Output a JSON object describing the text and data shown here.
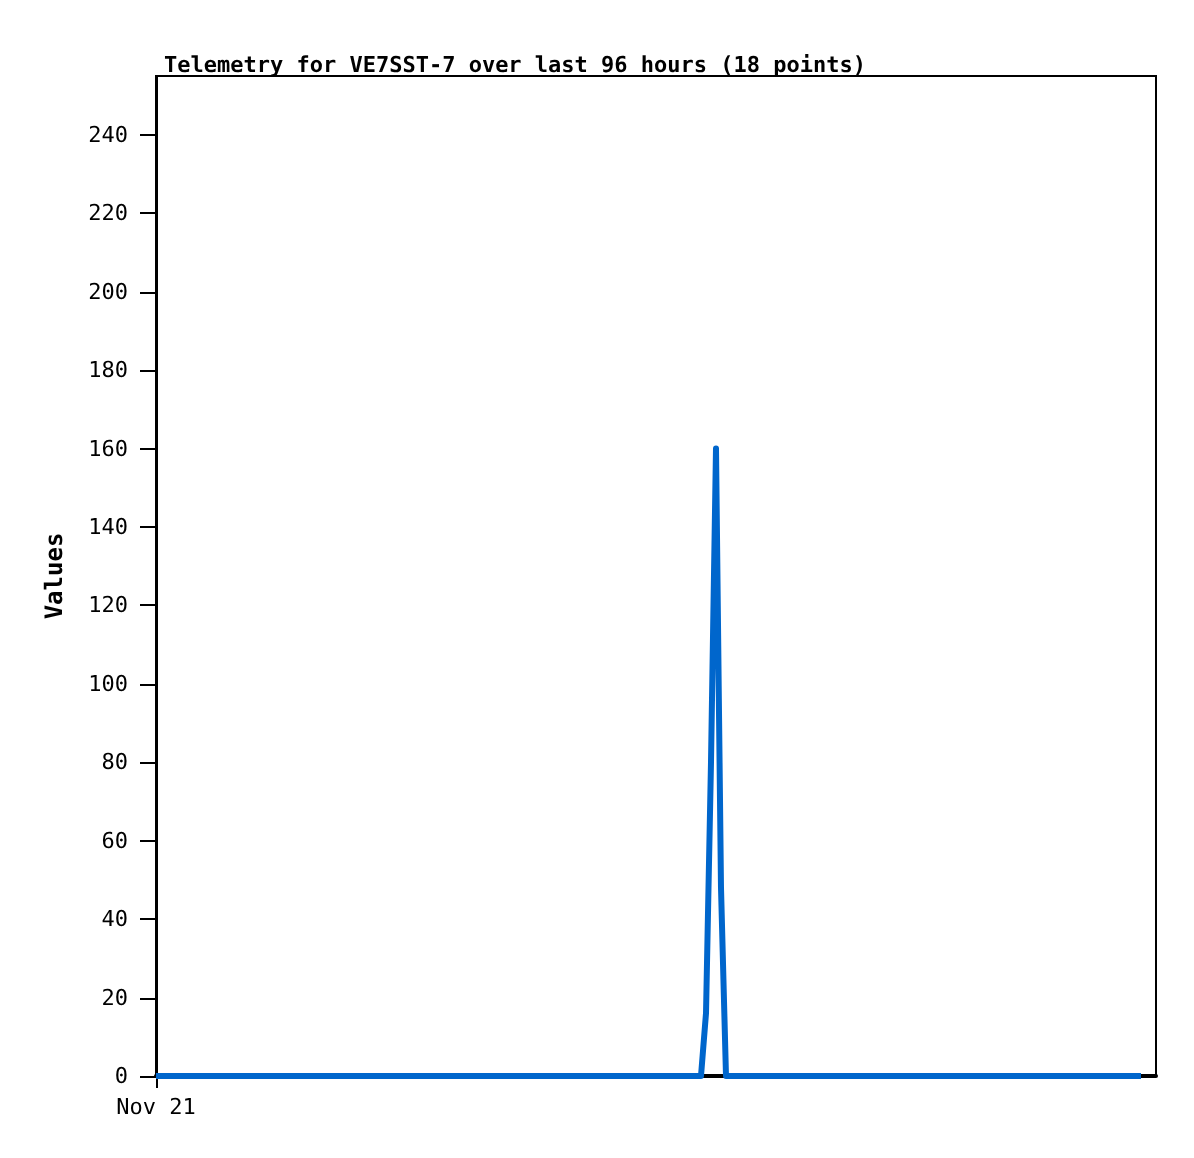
{
  "chart_data": {
    "type": "line",
    "title": "Telemetry for VE7SST-7 over last 96 hours (18 points)",
    "ylabel": "Values",
    "categories": [
      "Nov 21",
      null,
      null,
      null,
      null,
      null,
      null,
      null,
      null,
      null,
      null,
      null,
      null,
      null,
      null,
      null,
      null,
      null,
      null,
      null,
      null,
      null,
      null,
      null,
      null,
      null,
      null,
      null,
      null,
      null,
      null,
      null,
      null,
      null,
      null,
      null,
      null,
      null,
      null,
      null,
      null,
      null,
      null,
      null,
      null,
      null,
      null,
      null,
      null,
      null,
      null,
      null,
      null,
      null,
      null,
      null,
      null,
      null,
      null,
      null,
      null,
      null,
      null,
      null,
      null,
      null,
      null,
      null,
      null,
      null,
      null,
      null,
      null,
      null,
      null,
      null,
      null,
      null,
      null,
      null,
      null,
      null,
      null,
      null,
      null,
      null,
      null,
      null,
      null,
      null,
      null,
      null,
      null,
      null,
      null,
      null,
      null,
      null,
      null,
      null,
      null,
      null,
      null,
      null,
      null,
      null,
      null,
      null,
      null,
      null,
      null,
      null,
      null,
      null,
      null,
      null,
      null,
      null,
      null,
      null,
      null,
      null,
      null,
      null,
      null,
      null,
      null,
      null,
      null,
      null,
      null,
      null,
      null,
      null,
      null,
      null,
      null,
      null,
      null,
      null,
      null,
      null,
      null,
      null,
      null,
      null,
      null,
      null,
      null,
      null,
      null,
      null,
      null,
      null,
      null,
      null,
      null,
      null,
      null,
      null,
      null,
      null,
      null,
      null,
      null,
      null,
      null,
      null,
      null,
      null,
      null,
      null,
      null,
      null,
      null,
      null,
      null,
      null,
      null,
      null,
      null,
      null,
      null,
      null,
      null,
      null,
      null,
      null,
      null,
      null,
      null,
      null,
      null,
      null,
      null,
      null,
      null,
      null,
      null,
      null,
      null
    ],
    "ylim": [
      0,
      255
    ],
    "yticks": [
      0,
      20,
      40,
      60,
      80,
      100,
      120,
      140,
      160,
      180,
      200,
      220,
      240
    ],
    "grid": false,
    "marker": "none",
    "line_style": "solid",
    "series": [
      {
        "color": "#0066cc",
        "values": [
          0,
          0,
          0,
          0,
          0,
          0,
          0,
          0,
          0,
          0,
          0,
          0,
          0,
          0,
          0,
          0,
          0,
          0,
          0,
          0,
          0,
          0,
          0,
          0,
          0,
          0,
          0,
          0,
          0,
          0,
          0,
          0,
          0,
          0,
          0,
          0,
          0,
          0,
          0,
          0,
          0,
          0,
          0,
          0,
          0,
          0,
          0,
          0,
          0,
          0,
          0,
          0,
          0,
          0,
          0,
          0,
          0,
          0,
          0,
          0,
          0,
          0,
          0,
          0,
          0,
          0,
          0,
          0,
          0,
          0,
          0,
          0,
          0,
          0,
          0,
          0,
          0,
          0,
          0,
          0,
          0,
          0,
          0,
          0,
          0,
          0,
          0,
          0,
          0,
          0,
          0,
          0,
          0,
          0,
          0,
          0,
          0,
          0,
          0,
          0,
          0,
          0,
          0,
          0,
          0,
          0,
          0,
          0,
          0,
          0,
          16,
          80,
          160,
          48,
          0,
          0,
          0,
          0,
          0,
          0,
          0,
          0,
          0,
          0,
          0,
          0,
          0,
          0,
          0,
          0,
          0,
          0,
          0,
          0,
          0,
          0,
          0,
          0,
          0,
          0,
          0,
          0,
          0,
          0,
          0,
          0,
          0,
          0,
          0,
          0,
          0,
          0,
          0,
          0,
          0,
          0,
          0,
          0,
          0,
          0,
          0,
          0,
          0,
          0,
          0,
          0,
          0,
          0,
          0,
          0,
          0,
          0,
          0,
          0,
          0,
          0,
          0,
          0,
          0,
          0,
          0,
          0,
          0,
          0,
          0,
          0,
          0,
          0,
          0,
          0,
          0,
          0,
          0,
          0,
          0,
          0,
          0,
          0,
          null,
          null,
          null
        ]
      }
    ]
  }
}
